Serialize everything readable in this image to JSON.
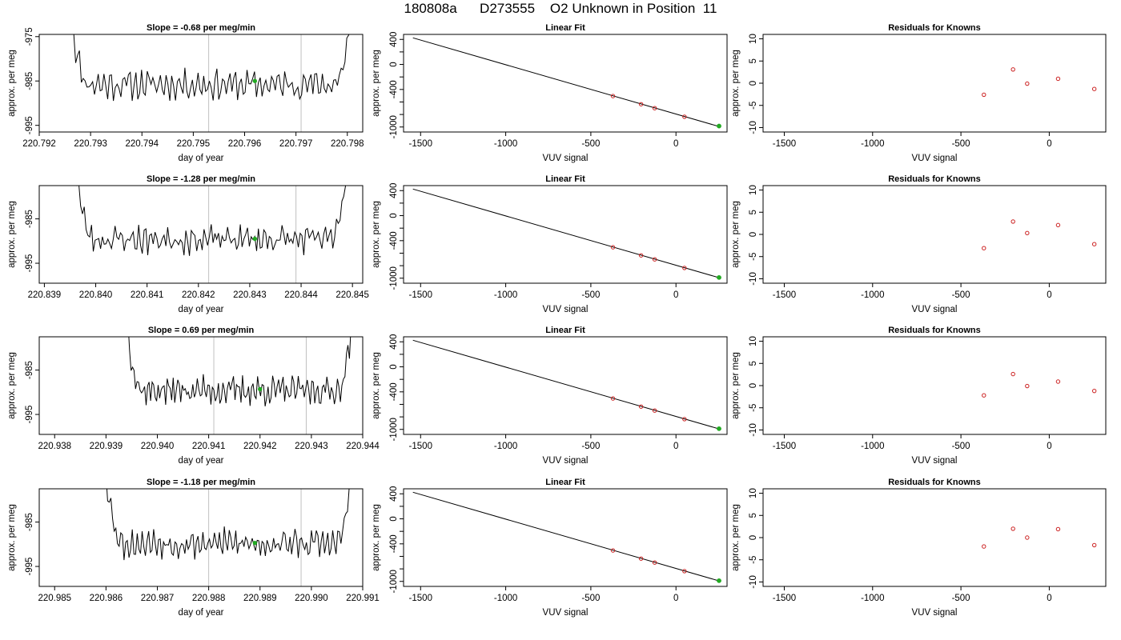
{
  "page_title": "180808a      D273555    O2 Unknown in Position  11",
  "colors": {
    "line": "#000000",
    "known_point": "#cc2222",
    "unknown_point": "#22aa22",
    "vline": "#c0c0c0"
  },
  "chart_data": [
    {
      "type": "line",
      "row": 1,
      "panel": "time-series",
      "title": "Slope =  -0.68  per meg/min",
      "xlabel": "day of year",
      "ylabel": "approx. per meg",
      "xlim": [
        220.792,
        220.7983
      ],
      "ylim": [
        -996.5,
        -974.5
      ],
      "xticks": [
        "220.792",
        "220.793",
        "220.794",
        "220.795",
        "220.796",
        "220.797",
        "220.798"
      ],
      "xtick_values": [
        220.792,
        220.793,
        220.794,
        220.795,
        220.796,
        220.797,
        220.798
      ],
      "yticks": [
        "-975",
        "-985",
        "-995"
      ],
      "ytick_values": [
        -975,
        -985,
        -995
      ],
      "trace_x_range": [
        220.7926,
        220.7981
      ],
      "trace_baseline": -985.8,
      "trace_seed": 11,
      "vlines": [
        220.7953,
        220.7971
      ],
      "unknown_point": {
        "x": 220.7962,
        "y": -985.0
      }
    },
    {
      "type": "line",
      "row": 1,
      "panel": "linear-fit",
      "title": "Linear Fit",
      "xlabel": "VUV signal",
      "ylabel": "approx. per meg",
      "xlim": [
        -1600,
        300
      ],
      "ylim": [
        -1080,
        480
      ],
      "xticks": [
        "-1500",
        "-1000",
        "-500",
        "0"
      ],
      "xtick_values": [
        -1500,
        -1000,
        -500,
        0
      ],
      "yticks": [
        "400",
        "0",
        "-400",
        "-1000"
      ],
      "ytick_values": [
        400,
        200,
        0,
        -200,
        -400,
        -600,
        -800,
        -1000
      ],
      "ytick_labels_at": [
        400,
        0,
        -400,
        -1000
      ],
      "fit_line": {
        "x": [
          -1545,
          255
        ],
        "y": [
          425,
          -994
        ]
      },
      "knowns": [
        {
          "x": -370,
          "y": -506
        },
        {
          "x": -205,
          "y": -636
        },
        {
          "x": -125,
          "y": -699
        },
        {
          "x": 50,
          "y": -836
        }
      ],
      "unknown_point": {
        "x": 253,
        "y": -985
      }
    },
    {
      "type": "scatter",
      "row": 1,
      "panel": "residuals",
      "title": "Residuals for Knowns",
      "xlabel": "VUV signal",
      "ylabel": "approx. per meg",
      "xlim": [
        -1620,
        320
      ],
      "ylim": [
        -11,
        11
      ],
      "xticks": [
        "-1500",
        "-1000",
        "-500",
        "0"
      ],
      "xtick_values": [
        -1500,
        -1000,
        -500,
        0
      ],
      "yticks": [
        "10",
        "5",
        "0",
        "-5",
        "-10"
      ],
      "ytick_values": [
        10,
        5,
        0,
        -5,
        -10
      ],
      "points": [
        {
          "x": -370,
          "y": -2.6
        },
        {
          "x": -205,
          "y": 3.1
        },
        {
          "x": -125,
          "y": -0.1
        },
        {
          "x": 50,
          "y": 1.0
        },
        {
          "x": 255,
          "y": -1.3
        }
      ]
    },
    {
      "type": "line",
      "row": 2,
      "panel": "time-series",
      "title": "Slope =  -1.28  per meg/min",
      "xlabel": "day of year",
      "ylabel": "approx. per meg",
      "xlim": [
        220.8389,
        220.8452
      ],
      "ylim": [
        -999.5,
        -977.5
      ],
      "xticks": [
        "220.839",
        "220.840",
        "220.841",
        "220.842",
        "220.843",
        "220.844",
        "220.845"
      ],
      "xtick_values": [
        220.839,
        220.84,
        220.841,
        220.842,
        220.843,
        220.844,
        220.845
      ],
      "yticks": [
        "-985",
        "-995"
      ],
      "ytick_values": [
        -985,
        -995
      ],
      "trace_x_range": [
        220.8396,
        220.8449
      ],
      "trace_baseline": -989.6,
      "trace_seed": 23,
      "vlines": [
        220.8422,
        220.8439
      ],
      "unknown_point": {
        "x": 220.8431,
        "y": -989.5
      }
    },
    {
      "type": "line",
      "row": 2,
      "panel": "linear-fit",
      "title": "Linear Fit",
      "xlabel": "VUV signal",
      "ylabel": "approx. per meg",
      "xlim": [
        -1600,
        300
      ],
      "ylim": [
        -1080,
        480
      ],
      "xticks": [
        "-1500",
        "-1000",
        "-500",
        "0"
      ],
      "xtick_values": [
        -1500,
        -1000,
        -500,
        0
      ],
      "yticks": [
        "400",
        "0",
        "-400",
        "-1000"
      ],
      "ytick_values": [
        400,
        200,
        0,
        -200,
        -400,
        -600,
        -800,
        -1000
      ],
      "ytick_labels_at": [
        400,
        0,
        -400,
        -1000
      ],
      "fit_line": {
        "x": [
          -1545,
          255
        ],
        "y": [
          425,
          -994
        ]
      },
      "knowns": [
        {
          "x": -370,
          "y": -506
        },
        {
          "x": -205,
          "y": -636
        },
        {
          "x": -125,
          "y": -699
        },
        {
          "x": 50,
          "y": -836
        }
      ],
      "unknown_point": {
        "x": 253,
        "y": -989
      }
    },
    {
      "type": "scatter",
      "row": 2,
      "panel": "residuals",
      "title": "Residuals for Knowns",
      "xlabel": "VUV signal",
      "ylabel": "approx. per meg",
      "xlim": [
        -1620,
        320
      ],
      "ylim": [
        -11,
        11
      ],
      "xticks": [
        "-1500",
        "-1000",
        "-500",
        "0"
      ],
      "xtick_values": [
        -1500,
        -1000,
        -500,
        0
      ],
      "yticks": [
        "10",
        "5",
        "0",
        "-5",
        "-10"
      ],
      "ytick_values": [
        10,
        5,
        0,
        -5,
        -10
      ],
      "points": [
        {
          "x": -370,
          "y": -3.1
        },
        {
          "x": -205,
          "y": 2.9
        },
        {
          "x": -125,
          "y": 0.3
        },
        {
          "x": 50,
          "y": 2.1
        },
        {
          "x": 255,
          "y": -2.2
        }
      ]
    },
    {
      "type": "line",
      "row": 3,
      "panel": "time-series",
      "title": "Slope =  0.69  per meg/min",
      "xlabel": "day of year",
      "ylabel": "approx. per meg",
      "xlim": [
        220.9377,
        220.944
      ],
      "ylim": [
        -999.5,
        -977.5
      ],
      "xticks": [
        "220.938",
        "220.939",
        "220.940",
        "220.941",
        "220.942",
        "220.943",
        "220.944"
      ],
      "xtick_values": [
        220.938,
        220.939,
        220.94,
        220.941,
        220.942,
        220.943,
        220.944
      ],
      "yticks": [
        "-985",
        "-995"
      ],
      "ytick_values": [
        -985,
        -995
      ],
      "trace_x_range": [
        220.9394,
        220.9438
      ],
      "trace_baseline": -989.6,
      "trace_seed": 37,
      "vlines": [
        220.9411,
        220.9429
      ],
      "unknown_point": {
        "x": 220.942,
        "y": -989.3
      }
    },
    {
      "type": "line",
      "row": 3,
      "panel": "linear-fit",
      "title": "Linear Fit",
      "xlabel": "VUV signal",
      "ylabel": "approx. per meg",
      "xlim": [
        -1600,
        300
      ],
      "ylim": [
        -1080,
        480
      ],
      "xticks": [
        "-1500",
        "-1000",
        "-500",
        "0"
      ],
      "xtick_values": [
        -1500,
        -1000,
        -500,
        0
      ],
      "yticks": [
        "400",
        "0",
        "-400",
        "-1000"
      ],
      "ytick_values": [
        400,
        200,
        0,
        -200,
        -400,
        -600,
        -800,
        -1000
      ],
      "ytick_labels_at": [
        400,
        0,
        -400,
        -1000
      ],
      "fit_line": {
        "x": [
          -1545,
          255
        ],
        "y": [
          425,
          -994
        ]
      },
      "knowns": [
        {
          "x": -370,
          "y": -506
        },
        {
          "x": -205,
          "y": -636
        },
        {
          "x": -125,
          "y": -699
        },
        {
          "x": 50,
          "y": -836
        }
      ],
      "unknown_point": {
        "x": 253,
        "y": -989
      }
    },
    {
      "type": "scatter",
      "row": 3,
      "panel": "residuals",
      "title": "Residuals for Knowns",
      "xlabel": "VUV signal",
      "ylabel": "approx. per meg",
      "xlim": [
        -1620,
        320
      ],
      "ylim": [
        -11,
        11
      ],
      "xticks": [
        "-1500",
        "-1000",
        "-500",
        "0"
      ],
      "xtick_values": [
        -1500,
        -1000,
        -500,
        0
      ],
      "yticks": [
        "10",
        "5",
        "0",
        "-5",
        "-10"
      ],
      "ytick_values": [
        10,
        5,
        0,
        -5,
        -10
      ],
      "points": [
        {
          "x": -370,
          "y": -2.2
        },
        {
          "x": -205,
          "y": 2.6
        },
        {
          "x": -125,
          "y": -0.1
        },
        {
          "x": 50,
          "y": 0.9
        },
        {
          "x": 255,
          "y": -1.2
        }
      ]
    },
    {
      "type": "line",
      "row": 4,
      "panel": "time-series",
      "title": "Slope =  -1.18  per meg/min",
      "xlabel": "day of year",
      "ylabel": "approx. per meg",
      "xlim": [
        220.9847,
        220.991
      ],
      "ylim": [
        -999.5,
        -977.5
      ],
      "xticks": [
        "220.985",
        "220.986",
        "220.987",
        "220.988",
        "220.989",
        "220.990",
        "220.991"
      ],
      "xtick_values": [
        220.985,
        220.986,
        220.987,
        220.988,
        220.989,
        220.99,
        220.991
      ],
      "yticks": [
        "-985",
        "-995"
      ],
      "ytick_values": [
        -985,
        -995
      ],
      "trace_x_range": [
        220.986,
        220.9908
      ],
      "trace_baseline": -989.8,
      "trace_seed": 53,
      "vlines": [
        220.988,
        220.9898
      ],
      "unknown_point": {
        "x": 220.9889,
        "y": -989.7
      }
    },
    {
      "type": "line",
      "row": 4,
      "panel": "linear-fit",
      "title": "Linear Fit",
      "xlabel": "VUV signal",
      "ylabel": "approx. per meg",
      "xlim": [
        -1600,
        300
      ],
      "ylim": [
        -1080,
        480
      ],
      "xticks": [
        "-1500",
        "-1000",
        "-500",
        "0"
      ],
      "xtick_values": [
        -1500,
        -1000,
        -500,
        0
      ],
      "yticks": [
        "400",
        "0",
        "-400",
        "-1000"
      ],
      "ytick_values": [
        400,
        200,
        0,
        -200,
        -400,
        -600,
        -800,
        -1000
      ],
      "ytick_labels_at": [
        400,
        0,
        -400,
        -1000
      ],
      "fit_line": {
        "x": [
          -1545,
          255
        ],
        "y": [
          425,
          -994
        ]
      },
      "knowns": [
        {
          "x": -370,
          "y": -506
        },
        {
          "x": -205,
          "y": -636
        },
        {
          "x": -125,
          "y": -699
        },
        {
          "x": 50,
          "y": -836
        }
      ],
      "unknown_point": {
        "x": 253,
        "y": -989
      }
    },
    {
      "type": "scatter",
      "row": 4,
      "panel": "residuals",
      "title": "Residuals for Knowns",
      "xlabel": "VUV signal",
      "ylabel": "approx. per meg",
      "xlim": [
        -1620,
        320
      ],
      "ylim": [
        -11,
        11
      ],
      "xticks": [
        "-1500",
        "-1000",
        "-500",
        "0"
      ],
      "xtick_values": [
        -1500,
        -1000,
        -500,
        0
      ],
      "yticks": [
        "10",
        "5",
        "0",
        "-5",
        "-10"
      ],
      "ytick_values": [
        10,
        5,
        0,
        -5,
        -10
      ],
      "points": [
        {
          "x": -370,
          "y": -2.0
        },
        {
          "x": -205,
          "y": 2.0
        },
        {
          "x": -125,
          "y": 0.0
        },
        {
          "x": 50,
          "y": 1.9
        },
        {
          "x": 255,
          "y": -1.7
        }
      ]
    }
  ]
}
